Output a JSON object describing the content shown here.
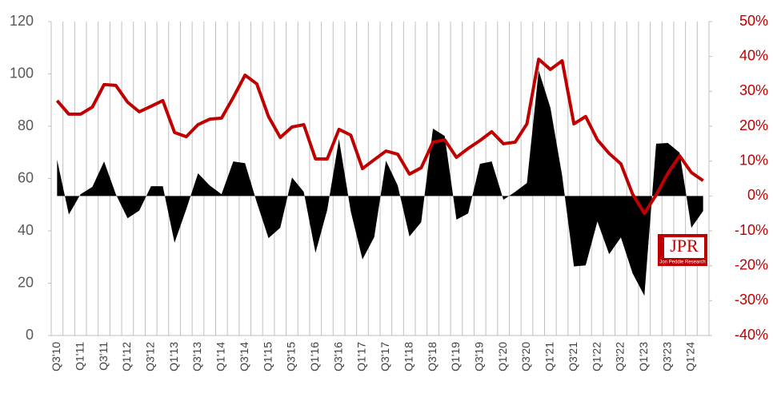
{
  "chart_data": {
    "type": "line",
    "categories": [
      "Q3'10",
      null,
      "Q1'11",
      null,
      "Q3'11",
      null,
      "Q1'12",
      null,
      "Q3'12",
      null,
      "Q1'13",
      null,
      "Q3'13",
      null,
      "Q1'14",
      null,
      "Q3'14",
      null,
      "Q1'15",
      null,
      "Q3'15",
      null,
      "Q1'16",
      null,
      "Q3'16",
      null,
      "Q1'17",
      null,
      "Q3'17",
      null,
      "Q1'18",
      null,
      "Q3'18",
      null,
      "Q1'19",
      null,
      "Q3'19",
      null,
      "Q1'20",
      null,
      "Q3'20",
      null,
      "Q1'21",
      null,
      "Q3'21",
      null,
      "Q1'22",
      null,
      "Q3'22",
      null,
      "Q1'23",
      null,
      "Q3'23",
      null,
      "Q1'24",
      null
    ],
    "series": [
      {
        "type": "area",
        "axis": "y2",
        "color": "#000000",
        "values": [
          10.4,
          -5.3,
          0.5,
          2.6,
          9.9,
          0.5,
          -6.4,
          -4.2,
          2.8,
          2.8,
          -13.4,
          -3.8,
          6.5,
          3.0,
          0.5,
          9.9,
          9.4,
          -1.8,
          -12.1,
          -9.1,
          5.3,
          1.2,
          -16.3,
          -4.0,
          16.3,
          -4.4,
          -18.2,
          -11.8,
          10.1,
          3.0,
          -11.6,
          -7.5,
          19.3,
          17.2,
          -6.8,
          -5.0,
          9.2,
          9.9,
          -1.1,
          1.2,
          3.7,
          36.0,
          25.3,
          5.8,
          -20.2,
          -19.9,
          -7.3,
          -16.7,
          -11.9,
          -22.2,
          -28.6,
          15.0,
          15.2,
          12.4,
          -9.1,
          -4.3
        ]
      },
      {
        "type": "line",
        "color": "#c00000",
        "values": [
          89.8,
          84.6,
          84.6,
          87.3,
          95.9,
          95.6,
          89.2,
          85.5,
          87.6,
          89.8,
          77.6,
          76.0,
          80.6,
          82.7,
          83.1,
          91.0,
          99.5,
          96.2,
          83.7,
          75.7,
          79.7,
          80.6,
          67.5,
          67.5,
          78.8,
          76.6,
          63.8,
          67.2,
          70.5,
          69.3,
          61.7,
          64.1,
          73.9,
          74.8,
          68.1,
          71.5,
          74.5,
          77.9,
          73.3,
          73.9,
          80.9,
          105.6,
          101.7,
          105.0,
          80.9,
          83.7,
          74.8,
          69.6,
          65.6,
          54.0,
          46.7,
          53.7,
          62.0,
          68.7,
          62.3,
          59.2
        ]
      }
    ],
    "ylim": [
      0,
      120
    ],
    "yticks": [
      0,
      20,
      40,
      60,
      80,
      100,
      120
    ],
    "y2lim": [
      -40,
      50
    ],
    "y2ticks": [
      {
        "value": -40,
        "label": "-40%"
      },
      {
        "value": -30,
        "label": "-30%"
      },
      {
        "value": -20,
        "label": "-20%"
      },
      {
        "value": -10,
        "label": "-10%"
      },
      {
        "value": 0,
        "label": "0%"
      },
      {
        "value": 10,
        "label": "10%"
      },
      {
        "value": 20,
        "label": "20%"
      },
      {
        "value": 30,
        "label": "30%"
      },
      {
        "value": 40,
        "label": "40%"
      },
      {
        "value": 50,
        "label": "50%"
      }
    ],
    "y2_color": "#c00000",
    "grid": true
  },
  "logo": {
    "text": "JPR",
    "subtitle": "Jon Peddie Research"
  }
}
